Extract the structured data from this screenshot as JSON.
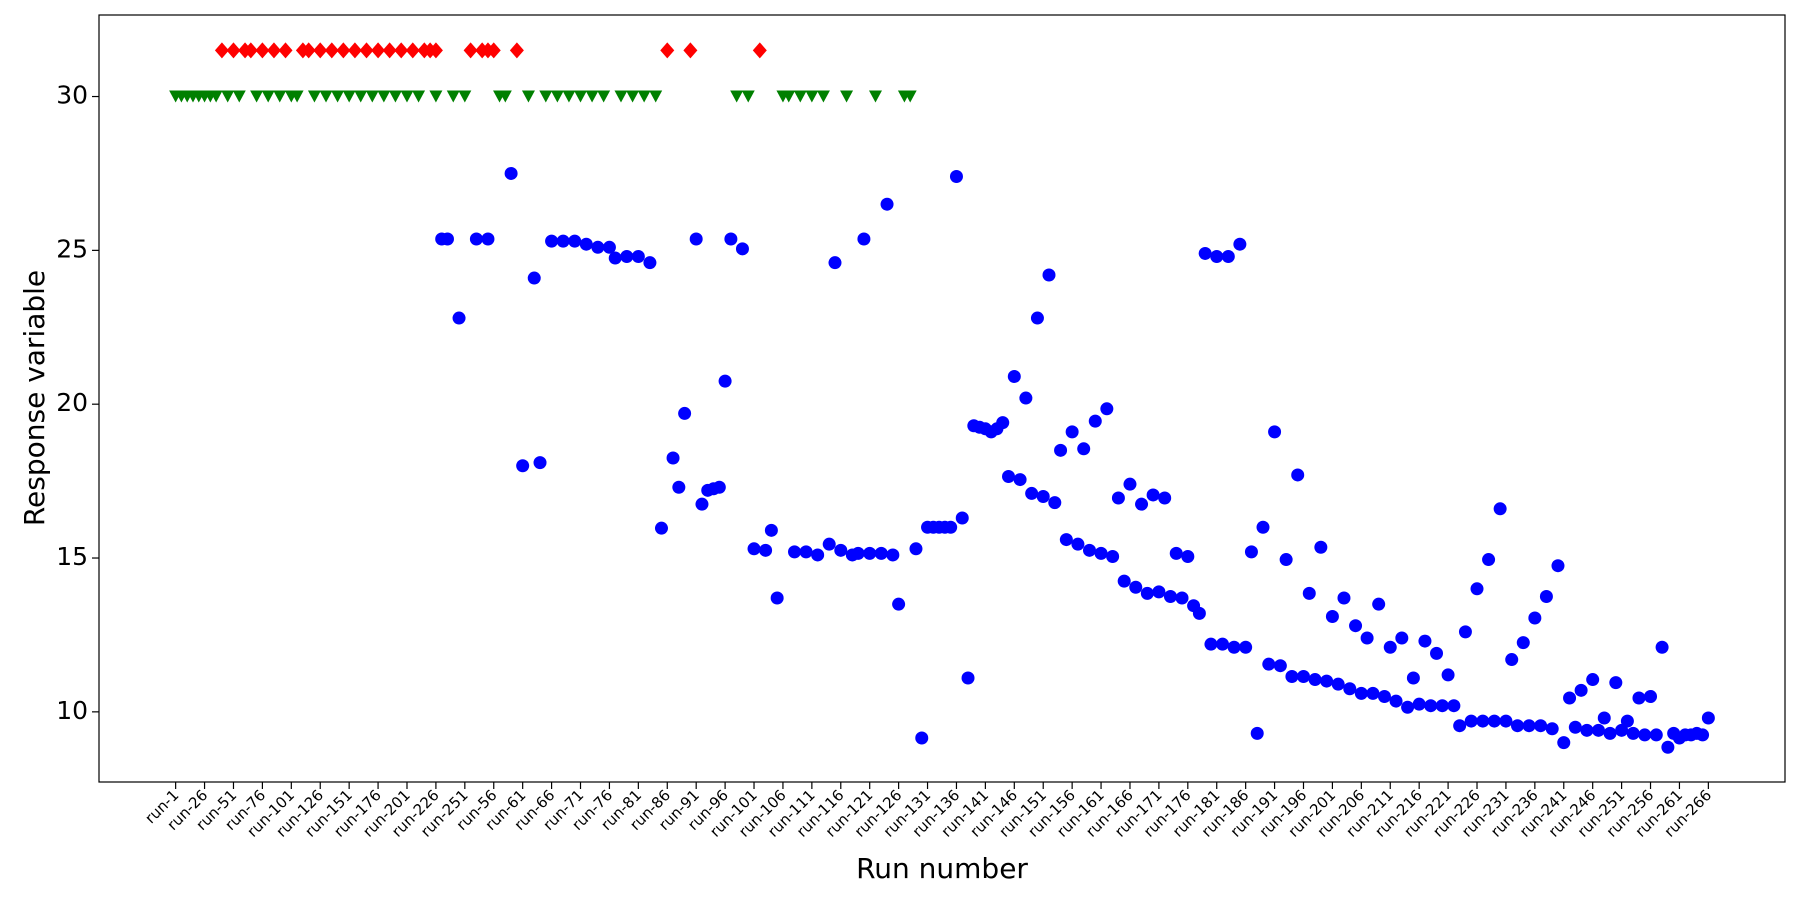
{
  "chart_data": {
    "type": "scatter",
    "xlabel": "Run number",
    "ylabel": "Response variable",
    "ylim": [
      7.72,
      32.65
    ],
    "yticks": [
      10,
      15,
      20,
      25,
      30
    ],
    "grid": false,
    "categories": [
      "run-1",
      null,
      null,
      null,
      null,
      "run-26",
      null,
      null,
      null,
      null,
      "run-51",
      null,
      null,
      null,
      null,
      "run-76",
      null,
      null,
      null,
      null,
      "run-101",
      null,
      null,
      null,
      null,
      "run-126",
      null,
      null,
      null,
      null,
      "run-151",
      null,
      null,
      null,
      null,
      "run-176",
      null,
      null,
      null,
      null,
      "run-201",
      null,
      null,
      null,
      null,
      "run-226",
      null,
      null,
      null,
      null,
      "run-251",
      null,
      null,
      null,
      null,
      "run-56",
      null,
      null,
      null,
      null,
      "run-61",
      null,
      null,
      null,
      null,
      "run-66",
      null,
      null,
      null,
      null,
      "run-71",
      null,
      null,
      null,
      null,
      "run-76",
      null,
      null,
      null,
      null,
      "run-81",
      null,
      null,
      null,
      null,
      "run-86",
      null,
      null,
      null,
      null,
      "run-91",
      null,
      null,
      null,
      null,
      "run-96",
      null,
      null,
      null,
      null,
      "run-101",
      null,
      null,
      null,
      null,
      "run-106",
      null,
      null,
      null,
      null,
      "run-111",
      null,
      null,
      null,
      null,
      "run-116",
      null,
      null,
      null,
      null,
      "run-121",
      null,
      null,
      null,
      null,
      "run-126",
      null,
      null,
      null,
      null,
      "run-131",
      null,
      null,
      null,
      null,
      "run-136",
      null,
      null,
      null,
      null,
      "run-141",
      null,
      null,
      null,
      null,
      "run-146",
      null,
      null,
      null,
      null,
      "run-151",
      null,
      null,
      null,
      null,
      "run-156",
      null,
      null,
      null,
      null,
      "run-161",
      null,
      null,
      null,
      null,
      "run-166",
      null,
      null,
      null,
      null,
      "run-171",
      null,
      null,
      null,
      null,
      "run-176",
      null,
      null,
      null,
      null,
      "run-181",
      null,
      null,
      null,
      null,
      "run-186",
      null,
      null,
      null,
      null,
      "run-191",
      null,
      null,
      null,
      null,
      "run-196",
      null,
      null,
      null,
      null,
      "run-201",
      null,
      null,
      null,
      null,
      "run-206",
      null,
      null,
      null,
      null,
      "run-211",
      null,
      null,
      null,
      null,
      "run-216",
      null,
      null,
      null,
      null,
      "run-221",
      null,
      null,
      null,
      null,
      "run-226",
      null,
      null,
      null,
      null,
      "run-231",
      null,
      null,
      null,
      null,
      "run-236",
      null,
      null,
      null,
      null,
      "run-241",
      null,
      null,
      null,
      null,
      "run-246",
      null,
      null,
      null,
      null,
      "run-251",
      null,
      null,
      null,
      null,
      "run-256",
      null,
      null,
      null,
      null,
      "run-261",
      null,
      null,
      null,
      null,
      "run-266"
    ],
    "series": [
      {
        "color": "#0000ff",
        "marker": "circle",
        "values": [
          null,
          null,
          null,
          null,
          null,
          null,
          null,
          null,
          null,
          null,
          null,
          null,
          null,
          null,
          null,
          null,
          null,
          null,
          null,
          null,
          null,
          null,
          null,
          null,
          null,
          null,
          null,
          null,
          null,
          null,
          null,
          null,
          null,
          null,
          null,
          null,
          null,
          null,
          null,
          null,
          null,
          null,
          null,
          null,
          null,
          null,
          25.37,
          25.37,
          null,
          22.8,
          null,
          null,
          25.37,
          null,
          25.37,
          null,
          null,
          null,
          27.5,
          null,
          18,
          null,
          24.1,
          18.1,
          null,
          25.3,
          null,
          25.3,
          null,
          25.3,
          null,
          25.2,
          null,
          25.1,
          null,
          25.1,
          24.75,
          null,
          24.8,
          null,
          24.8,
          null,
          24.6,
          null,
          15.97,
          null,
          18.25,
          17.3,
          19.7,
          null,
          25.37,
          16.75,
          17.2,
          17.25,
          17.3,
          20.75,
          25.37,
          null,
          25.05,
          null,
          15.3,
          null,
          15.25,
          15.9,
          13.7,
          null,
          null,
          15.2,
          null,
          15.2,
          null,
          15.1,
          null,
          15.45,
          24.6,
          15.25,
          null,
          15.1,
          15.15,
          25.37,
          15.15,
          null,
          15.15,
          26.5,
          15.1,
          13.5,
          null,
          null,
          15.3,
          9.15,
          16,
          16,
          16,
          16,
          16,
          27.4,
          16.3,
          11.1,
          19.3,
          19.25,
          19.2,
          19.1,
          19.2,
          19.4,
          17.65,
          20.9,
          17.55,
          20.2,
          17.1,
          22.8,
          17,
          24.2,
          16.8,
          18.5,
          15.6,
          19.1,
          15.45,
          18.55,
          15.25,
          19.45,
          15.15,
          19.85,
          15.05,
          16.95,
          14.25,
          17.4,
          14.05,
          16.75,
          13.85,
          17.05,
          13.9,
          16.95,
          13.75,
          15.15,
          13.7,
          15.05,
          13.45,
          13.2,
          24.9,
          12.2,
          24.8,
          12.2,
          24.8,
          12.1,
          25.2,
          12.1,
          15.2,
          9.3,
          16,
          11.55,
          19.1,
          11.5,
          14.95,
          11.15,
          17.7,
          11.15,
          13.85,
          11.05,
          15.35,
          11,
          13.1,
          10.9,
          13.7,
          10.75,
          12.8,
          10.6,
          12.4,
          10.6,
          13.5,
          10.5,
          12.1,
          10.35,
          12.4,
          10.15,
          11.1,
          10.25,
          12.3,
          10.2,
          11.9,
          10.2,
          11.2,
          10.2,
          9.55,
          12.6,
          9.7,
          14,
          9.7,
          14.95,
          9.7,
          16.6,
          9.7,
          11.7,
          9.55,
          12.25,
          9.55,
          13.05,
          9.55,
          13.75,
          9.45,
          14.75,
          9,
          10.45,
          9.5,
          10.7,
          9.4,
          11.05,
          9.4,
          9.8,
          9.3,
          10.95,
          9.4,
          9.7,
          9.3,
          10.45,
          9.25,
          10.5,
          9.25,
          12.1,
          8.85,
          9.3,
          9.15,
          9.25,
          9.25,
          9.3,
          9.25,
          9.8
        ]
      },
      {
        "color": "#ff0000",
        "marker": "diamond",
        "values": [
          null,
          null,
          null,
          null,
          null,
          null,
          null,
          null,
          31.5,
          null,
          31.5,
          null,
          31.5,
          31.5,
          null,
          31.5,
          null,
          31.5,
          null,
          31.5,
          null,
          null,
          31.5,
          31.5,
          null,
          31.5,
          null,
          31.5,
          null,
          31.5,
          null,
          31.5,
          null,
          31.5,
          null,
          31.5,
          null,
          31.5,
          null,
          31.5,
          null,
          31.5,
          null,
          31.5,
          31.5,
          31.5,
          null,
          null,
          null,
          null,
          null,
          31.5,
          null,
          31.5,
          31.5,
          31.5,
          null,
          null,
          null,
          31.5,
          null,
          null,
          null,
          null,
          null,
          null,
          null,
          null,
          null,
          null,
          null,
          null,
          null,
          null,
          null,
          null,
          null,
          null,
          null,
          null,
          null,
          null,
          null,
          null,
          null,
          31.5,
          null,
          null,
          null,
          31.5,
          null,
          null,
          null,
          null,
          null,
          null,
          null,
          null,
          null,
          null,
          null,
          31.5,
          null,
          null,
          null,
          null,
          null,
          null,
          null,
          null,
          null,
          null,
          null,
          null,
          null,
          null,
          null,
          null,
          null,
          null,
          null,
          null,
          null,
          null,
          null,
          null,
          null,
          null,
          null,
          null,
          null,
          null,
          null,
          null,
          null,
          null,
          null,
          null,
          null,
          null,
          null,
          null,
          null,
          null,
          null,
          null,
          null,
          null,
          null,
          null,
          null,
          null,
          null,
          null,
          null,
          null,
          null,
          null,
          null,
          null,
          null,
          null,
          null,
          null,
          null,
          null,
          null,
          null,
          null,
          null,
          null,
          null,
          null,
          null,
          null,
          null,
          null,
          null,
          null,
          null,
          null,
          null,
          null,
          null,
          null,
          null,
          null,
          null,
          null,
          null,
          null,
          null,
          null,
          null,
          null,
          null,
          null,
          null,
          null,
          null,
          null,
          null,
          null,
          null,
          null,
          null,
          null,
          null,
          null,
          null,
          null,
          null,
          null,
          null,
          null,
          null,
          null,
          null,
          null,
          null,
          null,
          null,
          null,
          null,
          null,
          null,
          null,
          null,
          null,
          null,
          null,
          null,
          null,
          null,
          null,
          null,
          null,
          null,
          null,
          null,
          null,
          null,
          null,
          null,
          null,
          null,
          null,
          null,
          null,
          null,
          null,
          null,
          null,
          null,
          null,
          null,
          null,
          null,
          null,
          null,
          null,
          null,
          null,
          null,
          null,
          null
        ]
      },
      {
        "color": "#008000",
        "marker": "triangle-down",
        "values": [
          30,
          30,
          30,
          30,
          30,
          30,
          30,
          30,
          null,
          30,
          null,
          30,
          null,
          null,
          30,
          null,
          30,
          null,
          30,
          null,
          30,
          30,
          null,
          null,
          30,
          null,
          30,
          null,
          30,
          null,
          30,
          null,
          30,
          null,
          30,
          null,
          30,
          null,
          30,
          null,
          30,
          null,
          30,
          null,
          null,
          30,
          null,
          null,
          30,
          null,
          30,
          null,
          null,
          null,
          null,
          null,
          30,
          30,
          null,
          null,
          null,
          30,
          null,
          null,
          30,
          null,
          30,
          null,
          30,
          null,
          30,
          null,
          30,
          null,
          30,
          null,
          null,
          30,
          null,
          30,
          null,
          30,
          null,
          30,
          null,
          null,
          null,
          null,
          null,
          null,
          null,
          null,
          null,
          null,
          null,
          null,
          null,
          30,
          null,
          30,
          null,
          null,
          null,
          null,
          null,
          30,
          30,
          null,
          30,
          null,
          30,
          null,
          30,
          null,
          null,
          null,
          30,
          null,
          null,
          null,
          null,
          30,
          null,
          null,
          null,
          null,
          30,
          30,
          null,
          null,
          null,
          null,
          null,
          null,
          null,
          null,
          null,
          null,
          null,
          null,
          null,
          null,
          null,
          null,
          null,
          null,
          null,
          null,
          null,
          null,
          null,
          null,
          null,
          null,
          null,
          null,
          null,
          null,
          null,
          null,
          null,
          null,
          null,
          null,
          null,
          null,
          null,
          null,
          null,
          null,
          null,
          null,
          null,
          null,
          null,
          null,
          null,
          null,
          null,
          null,
          null,
          null,
          null,
          null,
          null,
          null,
          null,
          null,
          null,
          null,
          null,
          null,
          null,
          null,
          null,
          null,
          null,
          null,
          null,
          null,
          null,
          null,
          null,
          null,
          null,
          null,
          null,
          null,
          null,
          null,
          null,
          null,
          null,
          null,
          null,
          null,
          null,
          null,
          null,
          null,
          null,
          null,
          null,
          null,
          null,
          null,
          null,
          null,
          null,
          null,
          null,
          null,
          null,
          null,
          null,
          null,
          null,
          null,
          null,
          null,
          null,
          null,
          null,
          null,
          null,
          null,
          null,
          null,
          null,
          null,
          null,
          null,
          null,
          null,
          null,
          null,
          null,
          null,
          null,
          null,
          null,
          null,
          null,
          null,
          null,
          null
        ]
      }
    ]
  }
}
